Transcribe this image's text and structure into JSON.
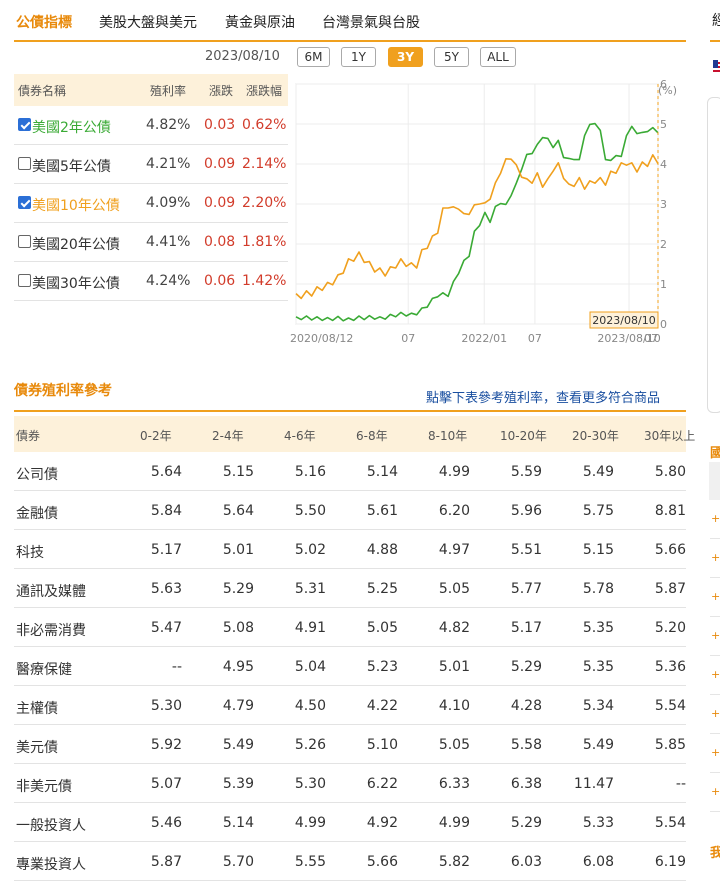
{
  "tabs": [
    {
      "label": "公債指標",
      "active": true
    },
    {
      "label": "美股大盤與美元",
      "active": false
    },
    {
      "label": "黃金與原油",
      "active": false
    },
    {
      "label": "台灣景氣與台股",
      "active": false
    }
  ],
  "range": {
    "date": "2023/08/10",
    "buttons": [
      {
        "label": "6M",
        "active": false
      },
      {
        "label": "1Y",
        "active": false
      },
      {
        "label": "3Y",
        "active": true
      },
      {
        "label": "5Y",
        "active": false
      },
      {
        "label": "ALL",
        "active": false
      }
    ]
  },
  "bond_table": {
    "headers": {
      "name": "債券名稱",
      "yield": "殖利率",
      "change": "漲跌",
      "pct": "漲跌幅"
    },
    "rows": [
      {
        "name": "美國2年公債",
        "yield": "4.82%",
        "change": "0.03",
        "pct": "0.62%",
        "checked": true,
        "color": "#3aaa35"
      },
      {
        "name": "美國5年公債",
        "yield": "4.21%",
        "change": "0.09",
        "pct": "2.14%",
        "checked": false,
        "color": "#333333"
      },
      {
        "name": "美國10年公債",
        "yield": "4.09%",
        "change": "0.09",
        "pct": "2.20%",
        "checked": true,
        "color": "#f0a01e"
      },
      {
        "name": "美國20年公債",
        "yield": "4.41%",
        "change": "0.08",
        "pct": "1.81%",
        "checked": false,
        "color": "#333333"
      },
      {
        "name": "美國30年公債",
        "yield": "4.24%",
        "change": "0.06",
        "pct": "1.42%",
        "checked": false,
        "color": "#333333"
      }
    ]
  },
  "chart_data": {
    "type": "line",
    "unit_label": "(%)",
    "y_ticks": [
      "0",
      "1",
      "2",
      "3",
      "4",
      "5",
      "6"
    ],
    "ylim": [
      0,
      6
    ],
    "x_ticks": [
      "2020/08/12",
      "07",
      "2022/01",
      "07",
      "2023/08/10",
      "07"
    ],
    "x_tick_positions": [
      0.0,
      0.31,
      0.52,
      0.66,
      0.92,
      1.0
    ],
    "tooltip_date": "2023/08/10",
    "grid": true,
    "series": [
      {
        "name": "美國2年公債",
        "color": "#3aaa35",
        "values": [
          0.14,
          0.15,
          0.16,
          0.14,
          0.14,
          0.13,
          0.12,
          0.13,
          0.15,
          0.12,
          0.11,
          0.13,
          0.16,
          0.15,
          0.17,
          0.16,
          0.14,
          0.16,
          0.2,
          0.22,
          0.25,
          0.24,
          0.23,
          0.27,
          0.36,
          0.46,
          0.6,
          0.72,
          0.74,
          0.73,
          1.02,
          1.3,
          1.55,
          1.73,
          2.28,
          2.5,
          2.75,
          2.58,
          2.9,
          3.05,
          2.95,
          3.25,
          3.48,
          3.9,
          4.2,
          4.3,
          4.45,
          4.7,
          4.6,
          4.45,
          4.55,
          4.2,
          4.1,
          4.15,
          4.07,
          4.75,
          4.95,
          5.05,
          4.8,
          4.15,
          4.05,
          4.25,
          4.15,
          4.75,
          4.9,
          4.8,
          4.75,
          4.85,
          4.87,
          4.82
        ]
      },
      {
        "name": "美國10年公債",
        "color": "#f0a01e",
        "values": [
          0.68,
          0.72,
          0.75,
          0.78,
          0.85,
          0.92,
          0.96,
          1.06,
          1.15,
          1.35,
          1.55,
          1.65,
          1.72,
          1.62,
          1.48,
          1.38,
          1.32,
          1.28,
          1.35,
          1.48,
          1.55,
          1.52,
          1.45,
          1.48,
          1.78,
          1.97,
          2.12,
          2.35,
          2.82,
          2.98,
          2.85,
          2.95,
          2.68,
          2.82,
          2.9,
          3.08,
          2.95,
          3.2,
          3.45,
          3.85,
          4.05,
          4.2,
          3.9,
          3.75,
          3.55,
          3.6,
          3.7,
          3.5,
          3.55,
          3.9,
          3.95,
          3.72,
          3.42,
          3.52,
          3.58,
          3.45,
          3.5,
          3.6,
          3.58,
          3.55,
          3.74,
          3.85,
          3.95,
          4.05,
          3.95,
          3.88,
          3.97,
          4.02,
          4.15,
          4.09
        ]
      }
    ]
  },
  "yield_section": {
    "title": "債券殖利率參考",
    "link": "點擊下表參考殖利率，查看更多符合商品",
    "headers": [
      "債券",
      "0-2年",
      "2-4年",
      "4-6年",
      "6-8年",
      "8-10年",
      "10-20年",
      "20-30年",
      "30年以上"
    ],
    "rows": [
      {
        "name": "公司債",
        "values": [
          "5.64",
          "5.15",
          "5.16",
          "5.14",
          "4.99",
          "5.59",
          "5.49",
          "5.80"
        ]
      },
      {
        "name": "金融債",
        "values": [
          "5.84",
          "5.64",
          "5.50",
          "5.61",
          "6.20",
          "5.96",
          "5.75",
          "8.81"
        ]
      },
      {
        "name": "科技",
        "values": [
          "5.17",
          "5.01",
          "5.02",
          "4.88",
          "4.97",
          "5.51",
          "5.15",
          "5.66"
        ]
      },
      {
        "name": "通訊及媒體",
        "values": [
          "5.63",
          "5.29",
          "5.31",
          "5.25",
          "5.05",
          "5.77",
          "5.78",
          "5.87"
        ]
      },
      {
        "name": "非必需消費",
        "values": [
          "5.47",
          "5.08",
          "4.91",
          "5.05",
          "4.82",
          "5.17",
          "5.35",
          "5.20"
        ]
      },
      {
        "name": "醫療保健",
        "values": [
          "--",
          "4.95",
          "5.04",
          "5.23",
          "5.01",
          "5.29",
          "5.35",
          "5.36"
        ]
      },
      {
        "name": "主權債",
        "values": [
          "5.30",
          "4.79",
          "4.50",
          "4.22",
          "4.10",
          "4.28",
          "5.34",
          "5.54"
        ]
      },
      {
        "name": "美元債",
        "values": [
          "5.92",
          "5.49",
          "5.26",
          "5.10",
          "5.05",
          "5.58",
          "5.49",
          "5.85"
        ]
      },
      {
        "name": "非美元債",
        "values": [
          "5.07",
          "5.39",
          "5.30",
          "6.22",
          "6.33",
          "6.38",
          "11.47",
          "--"
        ]
      },
      {
        "name": "一般投資人",
        "values": [
          "5.46",
          "5.14",
          "4.99",
          "4.92",
          "4.99",
          "5.29",
          "5.33",
          "5.54"
        ]
      },
      {
        "name": "專業投資人",
        "values": [
          "5.87",
          "5.70",
          "5.55",
          "5.66",
          "5.82",
          "6.03",
          "6.08",
          "6.19"
        ]
      }
    ]
  },
  "sidebar": {
    "top_char": "經",
    "head_1": "國",
    "head_2": "我",
    "plus": "+"
  }
}
